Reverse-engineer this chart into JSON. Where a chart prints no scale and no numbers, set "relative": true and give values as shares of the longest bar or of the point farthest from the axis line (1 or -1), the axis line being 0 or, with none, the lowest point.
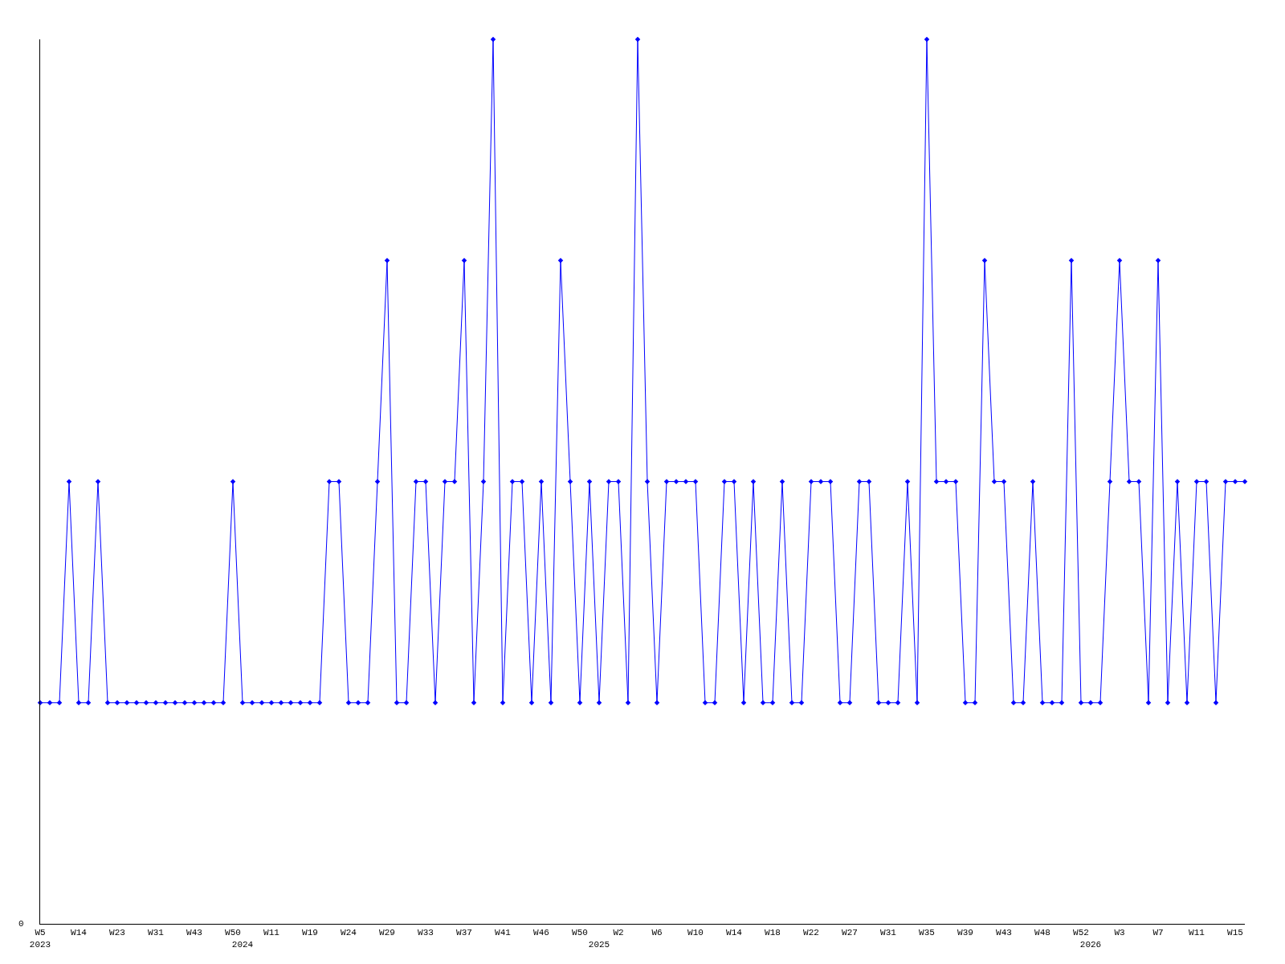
{
  "chart_data": {
    "type": "line",
    "relative": true,
    "annotations": [
      "0"
    ],
    "marker": "diamond",
    "line_style": "solid",
    "categories": [
      "W5\n2023",
      null,
      null,
      null,
      "W14",
      null,
      null,
      null,
      "W23",
      null,
      null,
      null,
      "W31",
      null,
      null,
      null,
      "W43",
      null,
      null,
      null,
      "W50",
      "\n2024",
      null,
      null,
      "W11",
      null,
      null,
      null,
      "W19",
      null,
      null,
      null,
      "W24",
      null,
      null,
      null,
      "W29",
      null,
      null,
      null,
      "W33",
      null,
      null,
      null,
      "W37",
      null,
      null,
      null,
      "W41",
      null,
      null,
      null,
      "W46",
      null,
      null,
      null,
      "W50",
      null,
      "\n2025",
      null,
      "W2",
      null,
      null,
      null,
      "W6",
      null,
      null,
      null,
      "W10",
      null,
      null,
      null,
      "W14",
      null,
      null,
      null,
      "W18",
      null,
      null,
      null,
      "W22",
      null,
      null,
      null,
      "W27",
      null,
      null,
      null,
      "W31",
      null,
      null,
      null,
      "W35",
      null,
      null,
      null,
      "W39",
      null,
      null,
      null,
      "W43",
      null,
      null,
      null,
      "W48",
      null,
      null,
      null,
      "W52",
      "\n2026",
      null,
      null,
      "W3",
      null,
      null,
      null,
      "W7",
      null,
      null,
      null,
      "W11",
      null,
      null,
      null,
      "W15",
      null
    ],
    "series": [
      {
        "color": "#0000ff",
        "values": [
          0.25,
          0.25,
          0.25,
          0.5,
          0.25,
          0.25,
          0.5,
          0.25,
          0.25,
          0.25,
          0.25,
          0.25,
          0.25,
          0.25,
          0.25,
          0.25,
          0.25,
          0.25,
          0.25,
          0.25,
          0.5,
          0.25,
          0.25,
          0.25,
          0.25,
          0.25,
          0.25,
          0.25,
          0.25,
          0.25,
          0.5,
          0.5,
          0.25,
          0.25,
          0.25,
          0.5,
          0.75,
          0.25,
          0.25,
          0.5,
          0.5,
          0.25,
          0.5,
          0.5,
          0.75,
          0.25,
          0.5,
          1,
          0.25,
          0.5,
          0.5,
          0.25,
          0.5,
          0.25,
          0.75,
          0.5,
          0.25,
          0.5,
          0.25,
          0.5,
          0.5,
          0.25,
          1,
          0.5,
          0.25,
          0.5,
          0.5,
          0.5,
          0.5,
          0.25,
          0.25,
          0.5,
          0.5,
          0.25,
          0.5,
          0.25,
          0.25,
          0.5,
          0.25,
          0.25,
          0.5,
          0.5,
          0.5,
          0.25,
          0.25,
          0.5,
          0.5,
          0.25,
          0.25,
          0.25,
          0.5,
          0.25,
          1,
          0.5,
          0.5,
          0.5,
          0.25,
          0.25,
          0.75,
          0.5,
          0.5,
          0.25,
          0.25,
          0.5,
          0.25,
          0.25,
          0.25,
          0.75,
          0.25,
          0.25,
          0.25,
          0.5,
          0.75,
          0.5,
          0.5,
          0.25,
          0.75,
          0.25,
          0.5,
          0.25,
          0.5,
          0.5,
          0.25,
          0.5,
          0.5,
          0.5
        ]
      }
    ]
  }
}
